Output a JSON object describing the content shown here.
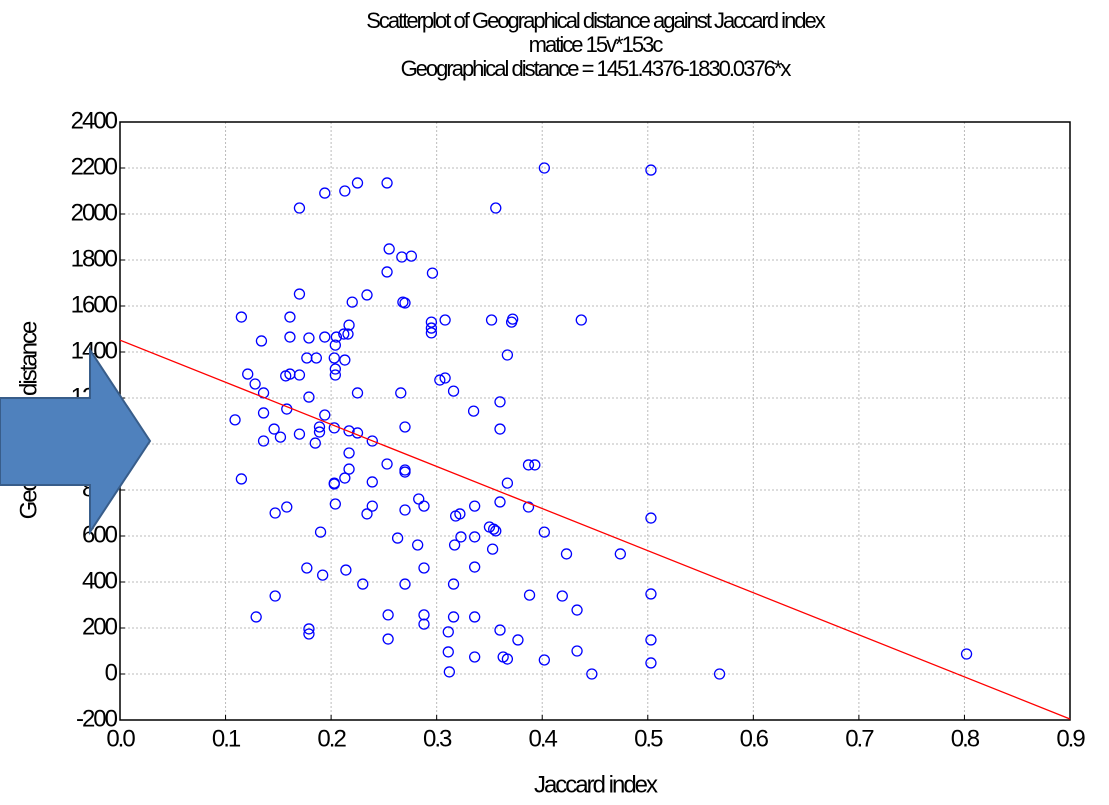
{
  "chart_data": {
    "type": "scatter",
    "title": "Scatterplot of Geographical distance against Jaccard index",
    "subtitle": "matice 15v*153c",
    "equation": "Geographical distance = 1451.4376-1830.0376*x",
    "x_label": "Jaccard index",
    "y_label": "Geographical distance",
    "regression": {
      "intercept": 1451.4376,
      "slope": -1830.0376,
      "color": "#ff0000"
    },
    "series": [
      {
        "color": "#0000ff",
        "x": [
          0.109,
          0.115,
          0.115,
          0.121,
          0.128,
          0.129,
          0.134,
          0.136,
          0.136,
          0.136,
          0.146,
          0.147,
          0.147,
          0.152,
          0.157,
          0.158,
          0.158,
          0.161,
          0.161,
          0.161,
          0.17,
          0.17,
          0.17,
          0.17,
          0.177,
          0.177,
          0.179,
          0.179,
          0.179,
          0.179,
          0.185,
          0.186,
          0.189,
          0.189,
          0.19,
          0.192,
          0.194,
          0.194,
          0.194,
          0.203,
          0.203,
          0.203,
          0.203,
          0.204,
          0.204,
          0.204,
          0.204,
          0.205,
          0.212,
          0.213,
          0.213,
          0.213,
          0.214,
          0.216,
          0.217,
          0.217,
          0.217,
          0.217,
          0.22,
          0.225,
          0.225,
          0.225,
          0.23,
          0.234,
          0.234,
          0.239,
          0.239,
          0.239,
          0.253,
          0.253,
          0.253,
          0.255,
          0.254,
          0.254,
          0.263,
          0.267,
          0.266,
          0.268,
          0.27,
          0.27,
          0.27,
          0.27,
          0.27,
          0.27,
          0.276,
          0.282,
          0.283,
          0.288,
          0.288,
          0.288,
          0.288,
          0.295,
          0.295,
          0.295,
          0.296,
          0.303,
          0.308,
          0.308,
          0.311,
          0.311,
          0.312,
          0.316,
          0.316,
          0.316,
          0.317,
          0.318,
          0.322,
          0.323,
          0.335,
          0.336,
          0.336,
          0.336,
          0.336,
          0.336,
          0.35,
          0.352,
          0.353,
          0.354,
          0.356,
          0.356,
          0.36,
          0.36,
          0.36,
          0.36,
          0.363,
          0.367,
          0.367,
          0.367,
          0.371,
          0.372,
          0.377,
          0.387,
          0.387,
          0.388,
          0.393,
          0.402,
          0.402,
          0.402,
          0.423,
          0.419,
          0.433,
          0.433,
          0.437,
          0.447,
          0.474,
          0.503,
          0.503,
          0.503,
          0.503,
          0.503,
          0.568,
          0.802
        ],
        "values": [
          1105,
          848,
          1552,
          1304,
          1261,
          248,
          1448,
          1222,
          1135,
          1013,
          1065,
          700,
          339,
          1030,
          1296,
          1152,
          726,
          1304,
          1552,
          1465,
          1300,
          1652,
          2026,
          1043,
          1374,
          461,
          1461,
          1204,
          196,
          174,
          1004,
          1374,
          1074,
          1052,
          617,
          430,
          2091,
          1126,
          1465,
          1070,
          830,
          826,
          1374,
          1326,
          1430,
          1300,
          739,
          1465,
          1478,
          2100,
          1365,
          852,
          452,
          1478,
          1057,
          1517,
          961,
          891,
          1617,
          1222,
          2135,
          1048,
          391,
          1648,
          696,
          1013,
          835,
          730,
          913,
          2135,
          1748,
          1848,
          257,
          152,
          591,
          1813,
          1222,
          1617,
          1613,
          1074,
          887,
          878,
          713,
          391,
          1817,
          561,
          761,
          730,
          461,
          257,
          217,
          1530,
          1504,
          1483,
          1743,
          1278,
          1287,
          1539,
          183,
          96,
          9,
          1230,
          391,
          248,
          561,
          687,
          696,
          596,
          1143,
          730,
          596,
          465,
          248,
          74,
          639,
          1539,
          543,
          630,
          622,
          2026,
          1183,
          1065,
          748,
          191,
          74,
          830,
          1387,
          65,
          1530,
          1543,
          148,
          909,
          726,
          343,
          909,
          2200,
          617,
          61,
          522,
          339,
          278,
          100,
          1539,
          0,
          522,
          2191,
          678,
          348,
          148,
          48,
          0,
          87
        ]
      }
    ],
    "xlim": [
      0,
      0.9
    ],
    "xticks": [
      {
        "value": 0,
        "label": "0.0"
      },
      0.1,
      0.2,
      0.3,
      0.4,
      0.5,
      0.6,
      0.7,
      0.8,
      0.9
    ],
    "ylim": [
      -200,
      2400
    ],
    "yticks": [
      -200,
      0,
      200,
      400,
      600,
      800,
      1000,
      1200,
      1400,
      1600,
      1800,
      2000,
      2200,
      2400
    ],
    "grid": true
  }
}
